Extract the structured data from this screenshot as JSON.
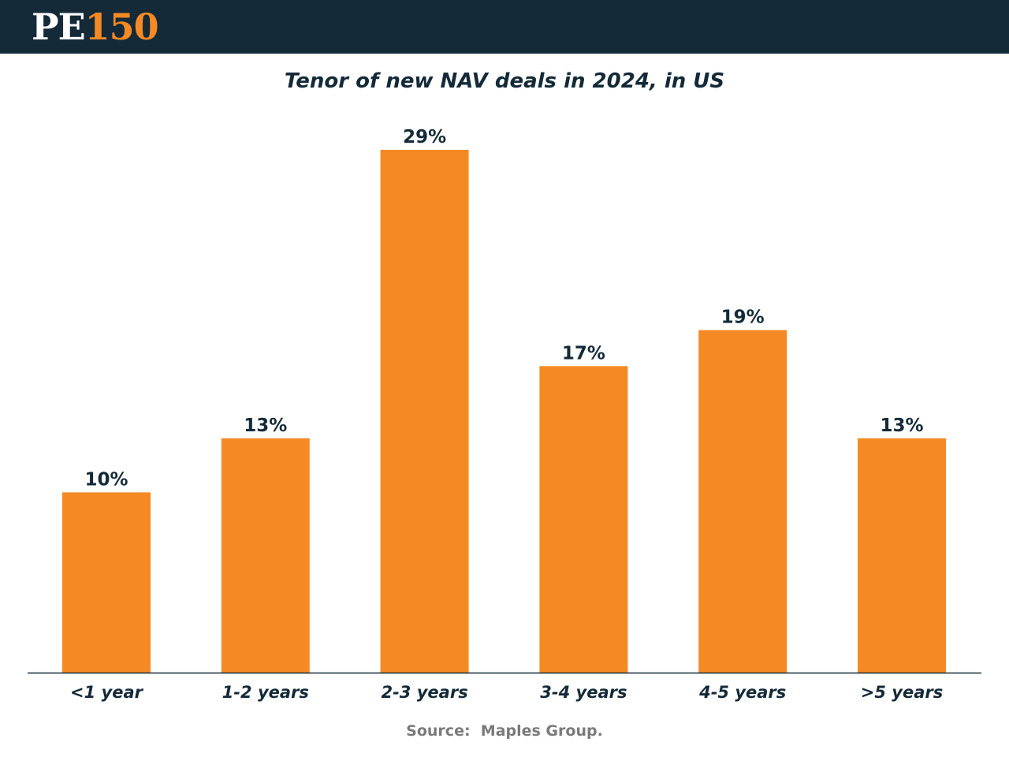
{
  "header": {
    "logo_pe": "PE",
    "logo_number": "150"
  },
  "colors": {
    "header_bg": "#142a38",
    "bar": "#f58a25",
    "text": "#142a38",
    "source_text": "#7a7a7a",
    "axis": "#142a38"
  },
  "chart_data": {
    "type": "bar",
    "title": "Tenor of new NAV deals in 2024, in US",
    "categories": [
      "<1 year",
      "1-2 years",
      "2-3 years",
      "3-4 years",
      "4-5 years",
      ">5 years"
    ],
    "values": [
      10,
      13,
      29,
      17,
      19,
      13
    ],
    "value_labels": [
      "10%",
      "13%",
      "29%",
      "17%",
      "19%",
      "13%"
    ],
    "unit": "%",
    "xlabel": "",
    "ylabel": "",
    "ylim": [
      0,
      29
    ],
    "grid": false,
    "legend": "none"
  },
  "source": "Source:  Maples Group."
}
